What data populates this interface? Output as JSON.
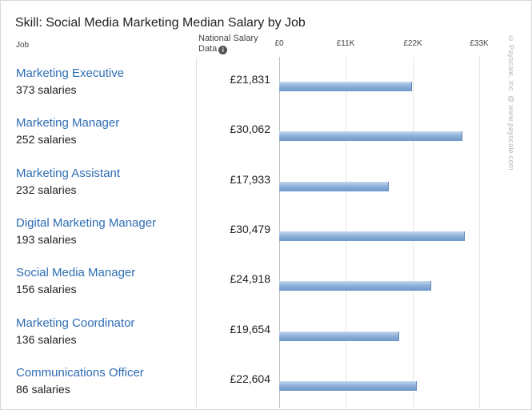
{
  "chart_data": {
    "type": "bar",
    "orientation": "horizontal",
    "title": "Skill: Social Media Marketing Median Salary by Job",
    "column_job_label": "Job",
    "column_salary_label": "National Salary Data",
    "x_ticks": [
      "£0",
      "£11K",
      "£22K",
      "£33K"
    ],
    "x_tick_values": [
      0,
      11000,
      22000,
      33000
    ],
    "xlim": [
      0,
      33000
    ],
    "categories": [
      "Marketing Executive",
      "Marketing Manager",
      "Marketing Assistant",
      "Digital Marketing Manager",
      "Social Media Manager",
      "Marketing Coordinator",
      "Communications Officer"
    ],
    "counts": [
      "373 salaries",
      "252 salaries",
      "232 salaries",
      "193 salaries",
      "156 salaries",
      "136 salaries",
      "86 salaries"
    ],
    "value_labels": [
      "£21,831",
      "£30,062",
      "£17,933",
      "£30,479",
      "£24,918",
      "£19,654",
      "£22,604"
    ],
    "values": [
      21831,
      30062,
      17933,
      30479,
      24918,
      19654,
      22604
    ],
    "grid": true,
    "bar_color": "#8fb1da",
    "link_color": "#2e6db4"
  },
  "watermark": "© Payscale, Inc. @ www.payscale.com"
}
